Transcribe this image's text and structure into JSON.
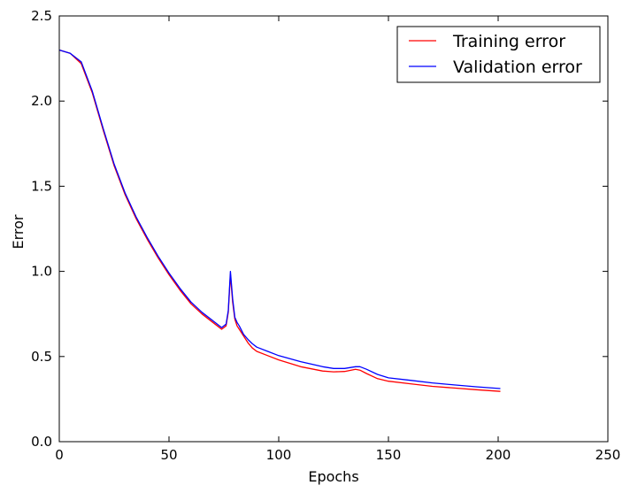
{
  "chart_data": {
    "type": "line",
    "title": "",
    "xlabel": "Epochs",
    "ylabel": "Error",
    "xlim": [
      0,
      250
    ],
    "ylim": [
      0.0,
      2.5
    ],
    "xticks": [
      0,
      50,
      100,
      150,
      200,
      250
    ],
    "xtick_labels": [
      "0",
      "50",
      "100",
      "150",
      "200",
      "250"
    ],
    "yticks": [
      0.0,
      0.5,
      1.0,
      1.5,
      2.0,
      2.5
    ],
    "ytick_labels": [
      "0.0",
      "0.5",
      "1.0",
      "1.5",
      "2.0",
      "2.5"
    ],
    "grid": false,
    "legend_position": "top-right",
    "series": [
      {
        "name": "Training error",
        "color": "#ff0000",
        "x": [
          0,
          5,
          10,
          15,
          20,
          25,
          30,
          35,
          40,
          45,
          50,
          55,
          60,
          65,
          70,
          74,
          76,
          77,
          78,
          79,
          80,
          81,
          82,
          84,
          86,
          88,
          90,
          95,
          100,
          110,
          120,
          125,
          130,
          135,
          137,
          140,
          145,
          150,
          160,
          170,
          180,
          190,
          201
        ],
        "values": [
          2.3,
          2.28,
          2.22,
          2.05,
          1.83,
          1.62,
          1.45,
          1.31,
          1.19,
          1.08,
          0.98,
          0.89,
          0.81,
          0.75,
          0.7,
          0.66,
          0.68,
          0.76,
          0.98,
          0.82,
          0.72,
          0.68,
          0.66,
          0.62,
          0.58,
          0.55,
          0.53,
          0.505,
          0.48,
          0.44,
          0.415,
          0.41,
          0.412,
          0.425,
          0.42,
          0.4,
          0.37,
          0.355,
          0.34,
          0.325,
          0.315,
          0.305,
          0.295
        ]
      },
      {
        "name": "Validation error",
        "color": "#0000ff",
        "x": [
          0,
          5,
          10,
          15,
          20,
          25,
          30,
          35,
          40,
          45,
          50,
          55,
          60,
          65,
          70,
          74,
          76,
          77,
          78,
          79,
          80,
          81,
          82,
          84,
          86,
          88,
          90,
          95,
          100,
          110,
          120,
          125,
          130,
          135,
          137,
          140,
          145,
          150,
          160,
          170,
          180,
          190,
          201
        ],
        "values": [
          2.3,
          2.28,
          2.23,
          2.06,
          1.84,
          1.63,
          1.46,
          1.32,
          1.2,
          1.09,
          0.99,
          0.9,
          0.82,
          0.76,
          0.71,
          0.67,
          0.69,
          0.77,
          1.0,
          0.84,
          0.73,
          0.7,
          0.68,
          0.63,
          0.6,
          0.575,
          0.555,
          0.53,
          0.505,
          0.47,
          0.44,
          0.43,
          0.43,
          0.44,
          0.44,
          0.425,
          0.395,
          0.375,
          0.36,
          0.345,
          0.333,
          0.322,
          0.312
        ]
      }
    ]
  }
}
